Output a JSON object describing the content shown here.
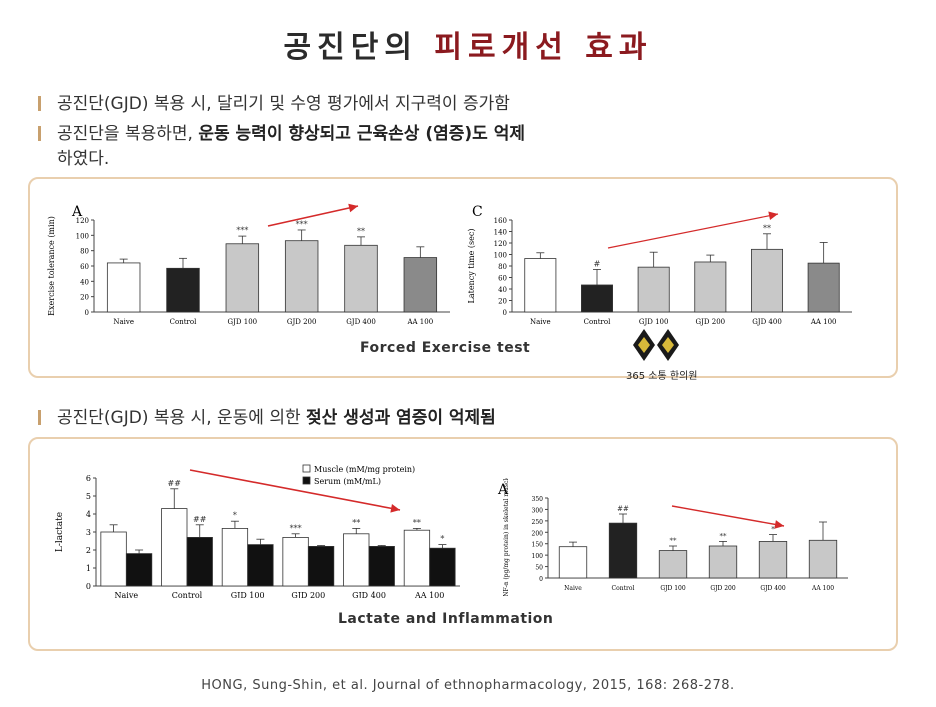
{
  "header": {
    "title_part1": "공진단의",
    "title_part2": "피로개선 효과"
  },
  "bullets": {
    "b1": "공진단(GJD) 복용 시, 달리기 및 수영 평가에서 지구력이 증가함",
    "b2_pre": "공진단을 복용하면, ",
    "b2_bold": "운동 능력이 향상되고 근육손상 (염증)도 억제",
    "b2_line2": "하였다.",
    "b3_pre": "공진단(GJD) 복용 시, 운동에 의한 ",
    "b3_bold": "젖산 생성과 염증이 억제됨"
  },
  "captions": {
    "forced": "Forced Exercise test",
    "lactate": "Lactate and Inflammation"
  },
  "logo": {
    "text": "365 소통 한의원",
    "icon": "diamond-logo-icon"
  },
  "reference": "HONG, Sung-Shin, et al. Journal of ethnopharmacology, 2015, 168: 268-278.",
  "colors": {
    "accent_red": "#8b1a1f",
    "panel_border": "#e9cfae",
    "arrow": "#d42a2a"
  },
  "chart_data": [
    {
      "type": "bar",
      "panel": "A",
      "ylabel": "Exercise tolerance (min)",
      "ylim": [
        0,
        120
      ],
      "yticks": [
        0,
        20,
        40,
        60,
        80,
        100,
        120
      ],
      "categories": [
        "Naive",
        "Control",
        "GJD 100",
        "GJD 200",
        "GJD 400",
        "AA 100"
      ],
      "values": [
        64,
        57,
        89,
        93,
        87,
        71
      ],
      "errors": [
        5,
        13,
        10,
        14,
        11,
        14
      ],
      "colors": [
        "#ffffff",
        "#222222",
        "#c8c8c8",
        "#c8c8c8",
        "#c8c8c8",
        "#8a8a8a"
      ],
      "annotations": [
        "",
        "",
        "***",
        "***",
        "**",
        ""
      ]
    },
    {
      "type": "bar",
      "panel": "C",
      "ylabel": "Latency time (sec)",
      "ylim": [
        0,
        160
      ],
      "yticks": [
        0,
        20,
        40,
        60,
        80,
        100,
        120,
        140,
        160
      ],
      "categories": [
        "Naive",
        "Control",
        "GJD 100",
        "GJD 200",
        "GJD 400",
        "AA 100"
      ],
      "values": [
        93,
        47,
        78,
        87,
        109,
        85
      ],
      "errors": [
        10,
        27,
        26,
        12,
        27,
        36
      ],
      "colors": [
        "#ffffff",
        "#222222",
        "#c8c8c8",
        "#c8c8c8",
        "#c8c8c8",
        "#8a8a8a"
      ],
      "annotations": [
        "",
        "#",
        "",
        "",
        "**",
        ""
      ]
    },
    {
      "type": "bar",
      "panel": "",
      "ylabel": "L-lactate",
      "ylim": [
        0,
        6
      ],
      "yticks": [
        0,
        1,
        2,
        3,
        4,
        5,
        6
      ],
      "categories": [
        "Naive",
        "Control",
        "GJD 100",
        "GJD 200",
        "GJD 400",
        "AA 100"
      ],
      "legend": [
        "Muscle (mM/mg protein)",
        "Serum (mM/mL)"
      ],
      "series": [
        {
          "name": "Muscle (mM/mg protein)",
          "values": [
            3.0,
            4.3,
            3.2,
            2.7,
            2.9,
            3.1
          ],
          "errors": [
            0.4,
            1.1,
            0.4,
            0.2,
            0.3,
            0.1
          ],
          "color": "#ffffff",
          "annotations": [
            "",
            "##",
            "*",
            "***",
            "**",
            "**"
          ]
        },
        {
          "name": "Serum (mM/mL)",
          "values": [
            1.8,
            2.7,
            2.3,
            2.2,
            2.2,
            2.1
          ],
          "errors": [
            0.2,
            0.7,
            0.3,
            0.05,
            0.05,
            0.2
          ],
          "color": "#111111",
          "annotations": [
            "",
            "##",
            "",
            "",
            "",
            "*"
          ]
        }
      ]
    },
    {
      "type": "bar",
      "panel": "A",
      "ylabel": "TNF-α (pg/mg protein) in skeletal muscle",
      "ylim": [
        0,
        350
      ],
      "yticks": [
        0,
        50,
        100,
        150,
        200,
        250,
        300,
        350
      ],
      "categories": [
        "Naive",
        "Control",
        "GJD 100",
        "GJD 200",
        "GJD 400",
        "AA 100"
      ],
      "values": [
        137,
        240,
        120,
        140,
        160,
        165
      ],
      "errors": [
        20,
        40,
        20,
        20,
        30,
        80
      ],
      "colors": [
        "#ffffff",
        "#222222",
        "#c8c8c8",
        "#c8c8c8",
        "#c8c8c8",
        "#c8c8c8"
      ],
      "annotations": [
        "",
        "##",
        "**",
        "**",
        "*",
        ""
      ]
    }
  ]
}
